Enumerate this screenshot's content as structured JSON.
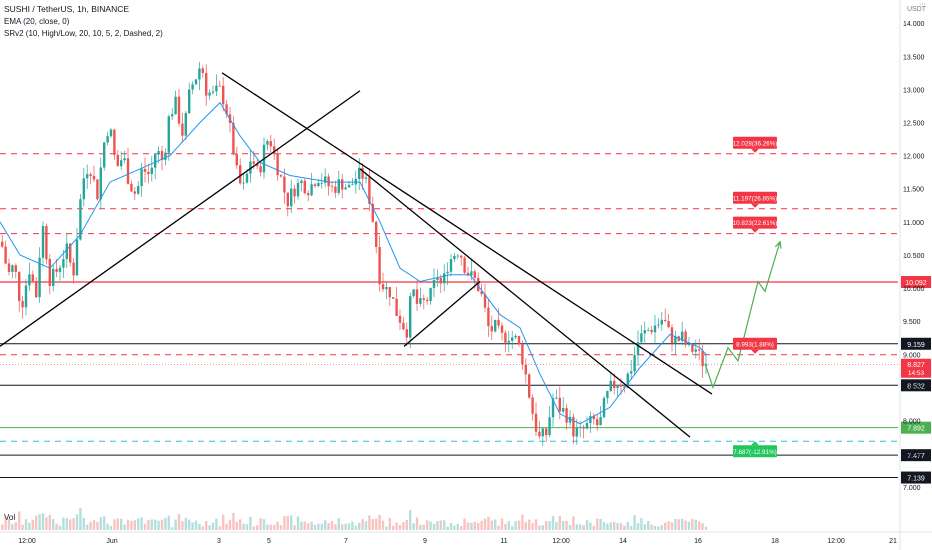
{
  "header": {
    "symbol": "SUSHI / TetherUS, 1h, BINANCE",
    "ema": "EMA (20, close, 0)",
    "srv2": "SRv2 (10, High/Low, 20, 10, 5, 2, Dashed, 2)",
    "quote_currency": "USDT"
  },
  "volume_label": "Vol",
  "colors": {
    "up": "#26a69a",
    "down": "#ef5350",
    "ema": "#2196f3",
    "level_red": "#f23645",
    "level_green": "#4caf50",
    "level_teal": "#26c6da",
    "arrow_green": "#4caf50",
    "trendline": "#000000"
  },
  "chart_data": {
    "type": "candlestick",
    "y_range": [
      6.8,
      14.35
    ],
    "y_ticks": [
      7.0,
      7.5,
      8.0,
      8.5,
      9.0,
      9.5,
      10.0,
      10.5,
      11.0,
      11.5,
      12.0,
      12.5,
      13.0,
      13.5,
      14.0
    ],
    "y_tick_labels": [
      "7.000",
      "7.500",
      "8.000",
      "8.500",
      "9.000",
      "9.500",
      "10.000",
      "10.500",
      "11.000",
      "11.500",
      "12.000",
      "12.500",
      "13.000",
      "13.500",
      "14.000"
    ],
    "x_tick_labels": [
      "12:00",
      "Jun",
      "3",
      "5",
      "7",
      "9",
      "11",
      "12:00",
      "14",
      "16",
      "18",
      "12:00",
      "21"
    ],
    "candle_path": [
      [
        0,
        10.7
      ],
      [
        7,
        10.2
      ],
      [
        13,
        10.35
      ],
      [
        20,
        9.7
      ],
      [
        28,
        10.3
      ],
      [
        35,
        9.9
      ],
      [
        41,
        11.0
      ],
      [
        49,
        10.1
      ],
      [
        57,
        10.3
      ],
      [
        65,
        10.6
      ],
      [
        72,
        10.2
      ],
      [
        81,
        11.6
      ],
      [
        88,
        11.9
      ],
      [
        96,
        11.4
      ],
      [
        103,
        12.2
      ],
      [
        108,
        12.5
      ],
      [
        115,
        11.8
      ],
      [
        122,
        12.0
      ],
      [
        128,
        11.6
      ],
      [
        135,
        11.4
      ],
      [
        141,
        11.8
      ],
      [
        149,
        11.7
      ],
      [
        155,
        12.1
      ],
      [
        162,
        11.9
      ],
      [
        168,
        12.6
      ],
      [
        174,
        12.8
      ],
      [
        182,
        12.3
      ],
      [
        189,
        13.0
      ],
      [
        195,
        13.2
      ],
      [
        200,
        13.4
      ],
      [
        205,
        13.0
      ],
      [
        211,
        12.9
      ],
      [
        218,
        13.0
      ],
      [
        224,
        12.8
      ],
      [
        231,
        12.2
      ],
      [
        237,
        11.6
      ],
      [
        243,
        11.5
      ],
      [
        250,
        12.0
      ],
      [
        257,
        11.7
      ],
      [
        263,
        12.1
      ],
      [
        268,
        12.3
      ],
      [
        273,
        12.0
      ],
      [
        279,
        11.7
      ],
      [
        286,
        11.3
      ],
      [
        293,
        11.5
      ],
      [
        300,
        11.6
      ],
      [
        308,
        11.5
      ],
      [
        316,
        11.7
      ],
      [
        323,
        11.6
      ],
      [
        331,
        11.5
      ],
      [
        340,
        11.6
      ],
      [
        348,
        11.5
      ],
      [
        356,
        11.7
      ],
      [
        363,
        11.7
      ],
      [
        369,
        11.3
      ],
      [
        374,
        10.8
      ],
      [
        378,
        10.2
      ],
      [
        383,
        10.0
      ],
      [
        389,
        9.95
      ],
      [
        396,
        9.6
      ],
      [
        401,
        9.5
      ],
      [
        405,
        9.3
      ],
      [
        411,
        10.0
      ],
      [
        417,
        9.7
      ],
      [
        424,
        9.8
      ],
      [
        430,
        9.9
      ],
      [
        436,
        10.2
      ],
      [
        441,
        10.0
      ],
      [
        446,
        10.35
      ],
      [
        452,
        10.5
      ],
      [
        458,
        10.6
      ],
      [
        463,
        10.35
      ],
      [
        468,
        10.2
      ],
      [
        475,
        10.1
      ],
      [
        481,
        9.85
      ],
      [
        488,
        9.35
      ],
      [
        494,
        9.4
      ],
      [
        500,
        9.25
      ],
      [
        508,
        9.3
      ],
      [
        516,
        9.2
      ],
      [
        522,
        8.9
      ],
      [
        528,
        8.4
      ],
      [
        533,
        8.0
      ],
      [
        538,
        7.72
      ],
      [
        545,
        7.8
      ],
      [
        552,
        8.35
      ],
      [
        558,
        8.2
      ],
      [
        565,
        8.1
      ],
      [
        572,
        7.85
      ],
      [
        578,
        7.8
      ],
      [
        585,
        7.9
      ],
      [
        592,
        8.0
      ],
      [
        598,
        7.9
      ],
      [
        604,
        8.3
      ],
      [
        610,
        8.5
      ],
      [
        617,
        8.6
      ],
      [
        623,
        8.55
      ],
      [
        630,
        8.8
      ],
      [
        637,
        9.2
      ],
      [
        642,
        9.3
      ],
      [
        650,
        9.4
      ],
      [
        656,
        9.45
      ],
      [
        662,
        9.55
      ],
      [
        668,
        9.3
      ],
      [
        675,
        9.2
      ],
      [
        681,
        9.25
      ],
      [
        688,
        9.05
      ],
      [
        694,
        9.1
      ],
      [
        700,
        8.9
      ],
      [
        706,
        8.85
      ]
    ],
    "ema_path": [
      [
        0,
        11.0
      ],
      [
        20,
        10.5
      ],
      [
        50,
        10.3
      ],
      [
        80,
        10.8
      ],
      [
        110,
        11.6
      ],
      [
        140,
        11.8
      ],
      [
        170,
        12.0
      ],
      [
        200,
        12.5
      ],
      [
        220,
        12.8
      ],
      [
        240,
        12.3
      ],
      [
        260,
        11.9
      ],
      [
        290,
        11.7
      ],
      [
        330,
        11.6
      ],
      [
        360,
        11.6
      ],
      [
        380,
        11.0
      ],
      [
        400,
        10.3
      ],
      [
        420,
        10.1
      ],
      [
        450,
        10.2
      ],
      [
        470,
        10.2
      ],
      [
        500,
        9.6
      ],
      [
        520,
        9.4
      ],
      [
        540,
        8.7
      ],
      [
        560,
        8.1
      ],
      [
        580,
        7.95
      ],
      [
        610,
        8.2
      ],
      [
        640,
        8.8
      ],
      [
        670,
        9.3
      ],
      [
        700,
        9.1
      ],
      [
        706,
        9.0
      ]
    ],
    "levels": [
      {
        "price": 12.028,
        "style": "dashed",
        "color": "red",
        "label": "12.028(36.26%)"
      },
      {
        "price": 11.197,
        "style": "dashed",
        "color": "red",
        "label": "11.197(26.85%)"
      },
      {
        "price": 10.823,
        "style": "dashed",
        "color": "red",
        "label": "10.823(22.61%)"
      },
      {
        "price": 10.092,
        "style": "solid",
        "color": "red",
        "label": "10.092"
      },
      {
        "price": 9.159,
        "style": "solid",
        "color": "black",
        "label": "9.159"
      },
      {
        "price": 8.993,
        "style": "dashed",
        "color": "red",
        "label": "8.993(1.88%)"
      },
      {
        "price": 8.532,
        "style": "solid",
        "color": "black",
        "label": "8.532"
      },
      {
        "price": 7.892,
        "style": "solid",
        "color": "green",
        "label": "7.892"
      },
      {
        "price": 7.687,
        "style": "dashed",
        "color": "teal",
        "label": "7.687(-12.91%)"
      },
      {
        "price": 7.477,
        "style": "solid",
        "color": "black",
        "label": "7.477"
      },
      {
        "price": 7.139,
        "style": "solid",
        "color": "black",
        "label": "7.139"
      }
    ],
    "current_price": "8.827",
    "countdown": "14:53",
    "trendlines": [
      [
        [
          0,
          9.12
        ],
        [
          360,
          12.98
        ]
      ],
      [
        [
          222,
          13.25
        ],
        [
          712,
          8.4
        ]
      ],
      [
        [
          360,
          11.8
        ],
        [
          690,
          7.75
        ]
      ],
      [
        [
          404,
          9.12
        ],
        [
          480,
          10.1
        ]
      ]
    ],
    "projection_arrow": [
      [
        705,
        8.86
      ],
      [
        713,
        8.5
      ],
      [
        728,
        9.1
      ],
      [
        738,
        8.9
      ],
      [
        758,
        10.1
      ],
      [
        765,
        9.95
      ],
      [
        780,
        10.7
      ]
    ]
  }
}
